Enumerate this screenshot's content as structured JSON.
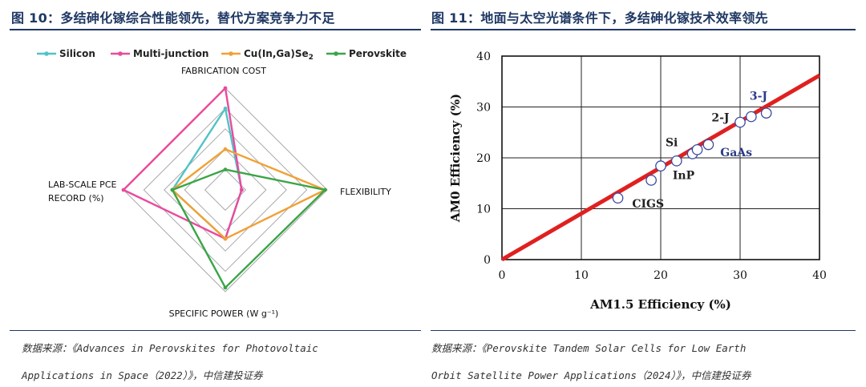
{
  "left_panel": {
    "title": "图 10：多结砷化镓综合性能领先，替代方案竞争力不足",
    "source_line1": "数据来源：《Advances in Perovskites for Photovoltaic",
    "source_line2": "Applications in Space（2022）》，中信建投证券"
  },
  "right_panel": {
    "title": "图 11：地面与太空光谱条件下，多结砷化镓技术效率领先",
    "source_line1": "数据来源：《Perovskite Tandem Solar Cells for Low Earth",
    "source_line2": "Orbit Satellite Power Applications（2024）》，中信建投证券"
  },
  "chart_data": [
    {
      "type": "radar",
      "axes": [
        {
          "key": "top",
          "label": "FABRICATION COST"
        },
        {
          "key": "right",
          "label": "FLEXIBILITY"
        },
        {
          "key": "bottom",
          "label": "SPECIFIC POWER (W g⁻¹)"
        },
        {
          "key": "left",
          "label_line1": "LAB-SCALE PCE",
          "label_line2": "RECORD (%)"
        }
      ],
      "rings": 5,
      "max": 5,
      "legend": [
        {
          "name": "Silicon",
          "color": "#4fc3c8"
        },
        {
          "name": "Multi-junction",
          "color": "#e94a9e"
        },
        {
          "name_main": "Cu(In,Ga)Se",
          "name_sub": "2",
          "color": "#f2a035"
        },
        {
          "name": "Perovskite",
          "color": "#3aa547"
        }
      ],
      "series": [
        {
          "name": "Silicon",
          "color": "#4fc3c8",
          "values": [
            4,
            0.8,
            2.4,
            2.6
          ]
        },
        {
          "name": "Multi-junction",
          "color": "#e94a9e",
          "values": [
            5,
            0.8,
            2.4,
            5
          ]
        },
        {
          "name": "Cu(In,Ga)Se2",
          "color": "#f2a035",
          "values": [
            2,
            4.9,
            2.4,
            2.6
          ]
        },
        {
          "name": "Perovskite",
          "color": "#3aa547",
          "values": [
            1.0,
            4.9,
            4.8,
            2.6
          ]
        }
      ],
      "legend_placement": "top"
    },
    {
      "type": "scatter",
      "xlabel": "AM1.5 Efficiency (%)",
      "ylabel": "AM0 Efficiency (%)",
      "xlim": [
        0,
        40
      ],
      "ylim": [
        0,
        40
      ],
      "x_ticks": [
        "0",
        "10",
        "20",
        "30",
        "40"
      ],
      "y_ticks": [
        "0",
        "10",
        "20",
        "30",
        "40"
      ],
      "grid": true,
      "fit_line": {
        "x": [
          0,
          40
        ],
        "y": [
          0,
          36.2
        ],
        "color": "#e02020"
      },
      "points": [
        {
          "x": 14.6,
          "y": 12.1
        },
        {
          "x": 18.8,
          "y": 15.6
        },
        {
          "x": 20.0,
          "y": 18.4
        },
        {
          "x": 22.0,
          "y": 19.4
        },
        {
          "x": 24.0,
          "y": 20.8
        },
        {
          "x": 24.6,
          "y": 21.6
        },
        {
          "x": 26.0,
          "y": 22.6
        },
        {
          "x": 30.0,
          "y": 27.0
        },
        {
          "x": 31.4,
          "y": 28.1
        },
        {
          "x": 33.3,
          "y": 28.8
        }
      ],
      "annotations": [
        {
          "text": "CIGS",
          "x": 16.4,
          "y": 10.2,
          "color": "#222222"
        },
        {
          "text": "InP",
          "x": 21.5,
          "y": 15.8,
          "color": "#222222"
        },
        {
          "text": "Si",
          "x": 20.6,
          "y": 22.3,
          "color": "#222222"
        },
        {
          "text": "GaAs",
          "x": 27.5,
          "y": 20.3,
          "color": "#2c3a85"
        },
        {
          "text": "2-J",
          "x": 26.4,
          "y": 27.2,
          "color": "#222222"
        },
        {
          "text": "3-J",
          "x": 31.2,
          "y": 31.4,
          "color": "#2c3a85"
        }
      ]
    }
  ]
}
